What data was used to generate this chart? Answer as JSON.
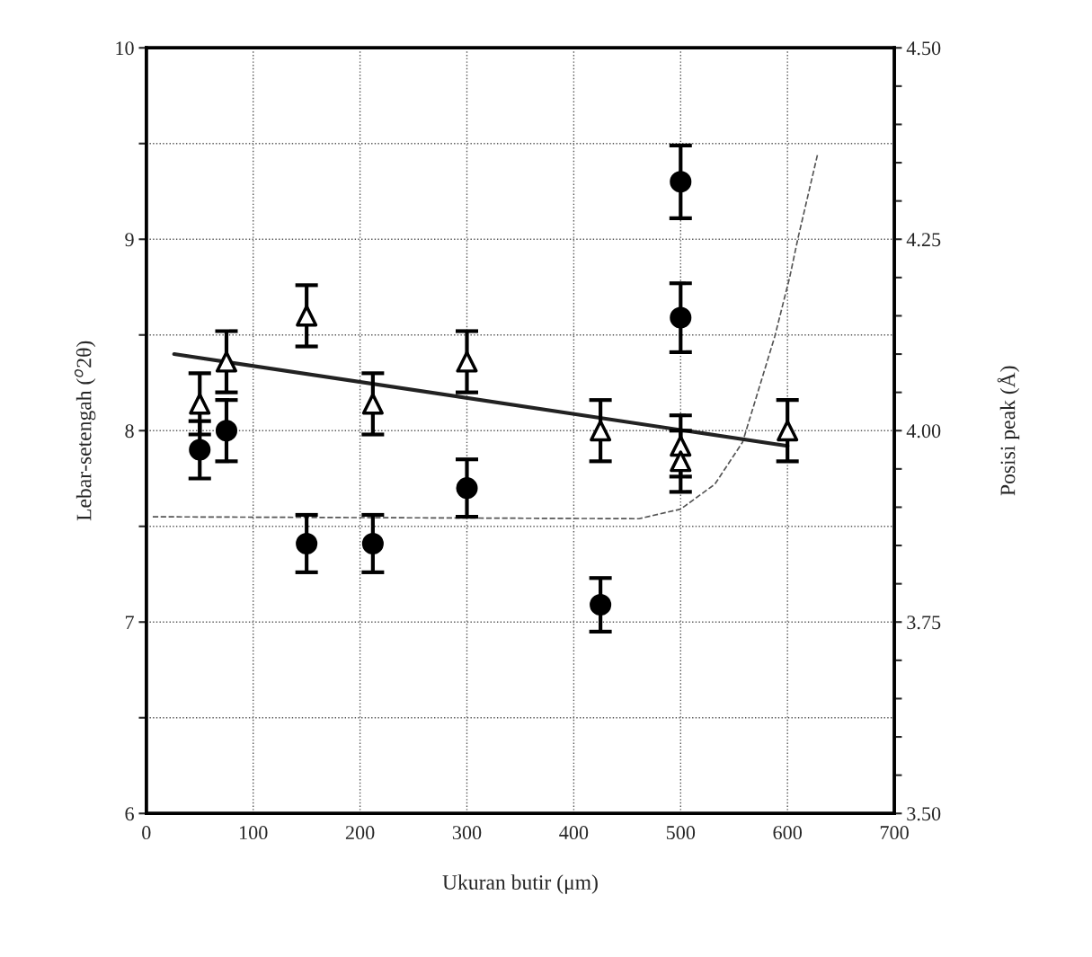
{
  "chart_data": {
    "type": "scatter",
    "xlabel": "Ukuran butir (μm)",
    "ylabel": "Lebar-setengah ($^{o}$2θ)",
    "y2label": "Posisi peak (Å)",
    "xlim": [
      0,
      700
    ],
    "xticks": [
      0,
      100,
      200,
      300,
      400,
      500,
      600,
      700
    ],
    "ylim": [
      6,
      10
    ],
    "yticks": [
      6,
      {
        "value": 6.5,
        "label": null
      },
      7,
      {
        "value": 7.5,
        "label": null
      },
      8,
      {
        "value": 8.5,
        "label": null
      },
      9,
      {
        "value": 9.5,
        "label": null
      },
      10
    ],
    "y2lim": [
      3.5,
      4.5
    ],
    "y2ticks": [
      {
        "value": 3.5,
        "label": "3.50"
      },
      {
        "value": 3.55,
        "label": null
      },
      {
        "value": 3.6,
        "label": null
      },
      {
        "value": 3.65,
        "label": null
      },
      {
        "value": 3.7,
        "label": null
      },
      3.75,
      {
        "value": 3.8,
        "label": null
      },
      {
        "value": 3.85,
        "label": null
      },
      {
        "value": 3.9,
        "label": null
      },
      {
        "value": 3.95,
        "label": null
      },
      {
        "value": 4.0,
        "label": "4.00"
      },
      {
        "value": 4.05,
        "label": null
      },
      {
        "value": 4.1,
        "label": null
      },
      {
        "value": 4.15,
        "label": null
      },
      {
        "value": 4.2,
        "label": null
      },
      4.25,
      {
        "value": 4.3,
        "label": null
      },
      {
        "value": 4.35,
        "label": null
      },
      {
        "value": 4.4,
        "label": null
      },
      {
        "value": 4.45,
        "label": null
      },
      {
        "value": 4.5,
        "label": "4.50"
      }
    ],
    "grid": true,
    "series": [
      {
        "marker": "circle",
        "color": "#000000",
        "x": [
          50,
          75,
          150,
          212,
          300,
          425,
          500,
          500
        ],
        "values": [
          7.9,
          8.0,
          7.41,
          7.41,
          7.7,
          7.09,
          9.3,
          8.59
        ],
        "errors": [
          0.15,
          0.16,
          0.15,
          0.15,
          0.15,
          0.14,
          0.19,
          0.18
        ]
      },
      {
        "marker": "triangle",
        "axis": "y2",
        "color": "#000000",
        "x": [
          50,
          75,
          150,
          212,
          300,
          425,
          500,
          500,
          600
        ],
        "values": [
          4.035,
          4.09,
          4.15,
          4.035,
          4.09,
          4.0,
          3.98,
          3.96,
          4.0
        ],
        "errors": [
          0.04,
          0.04,
          0.04,
          0.04,
          0.04,
          0.04,
          0.04,
          0.04,
          0.04
        ]
      },
      {
        "type": "line",
        "axis": "y2",
        "line_style": "solid",
        "color": "#222222",
        "x": [
          26,
          600
        ],
        "values": [
          4.1,
          3.98
        ]
      },
      {
        "type": "line",
        "line_style": "dashed",
        "color": "#555555",
        "x": [
          6,
          461,
          500,
          532,
          558,
          588,
          602,
          610,
          628
        ],
        "values": [
          7.55,
          7.54,
          7.59,
          7.72,
          7.94,
          8.49,
          8.8,
          9.01,
          9.44
        ]
      }
    ]
  }
}
